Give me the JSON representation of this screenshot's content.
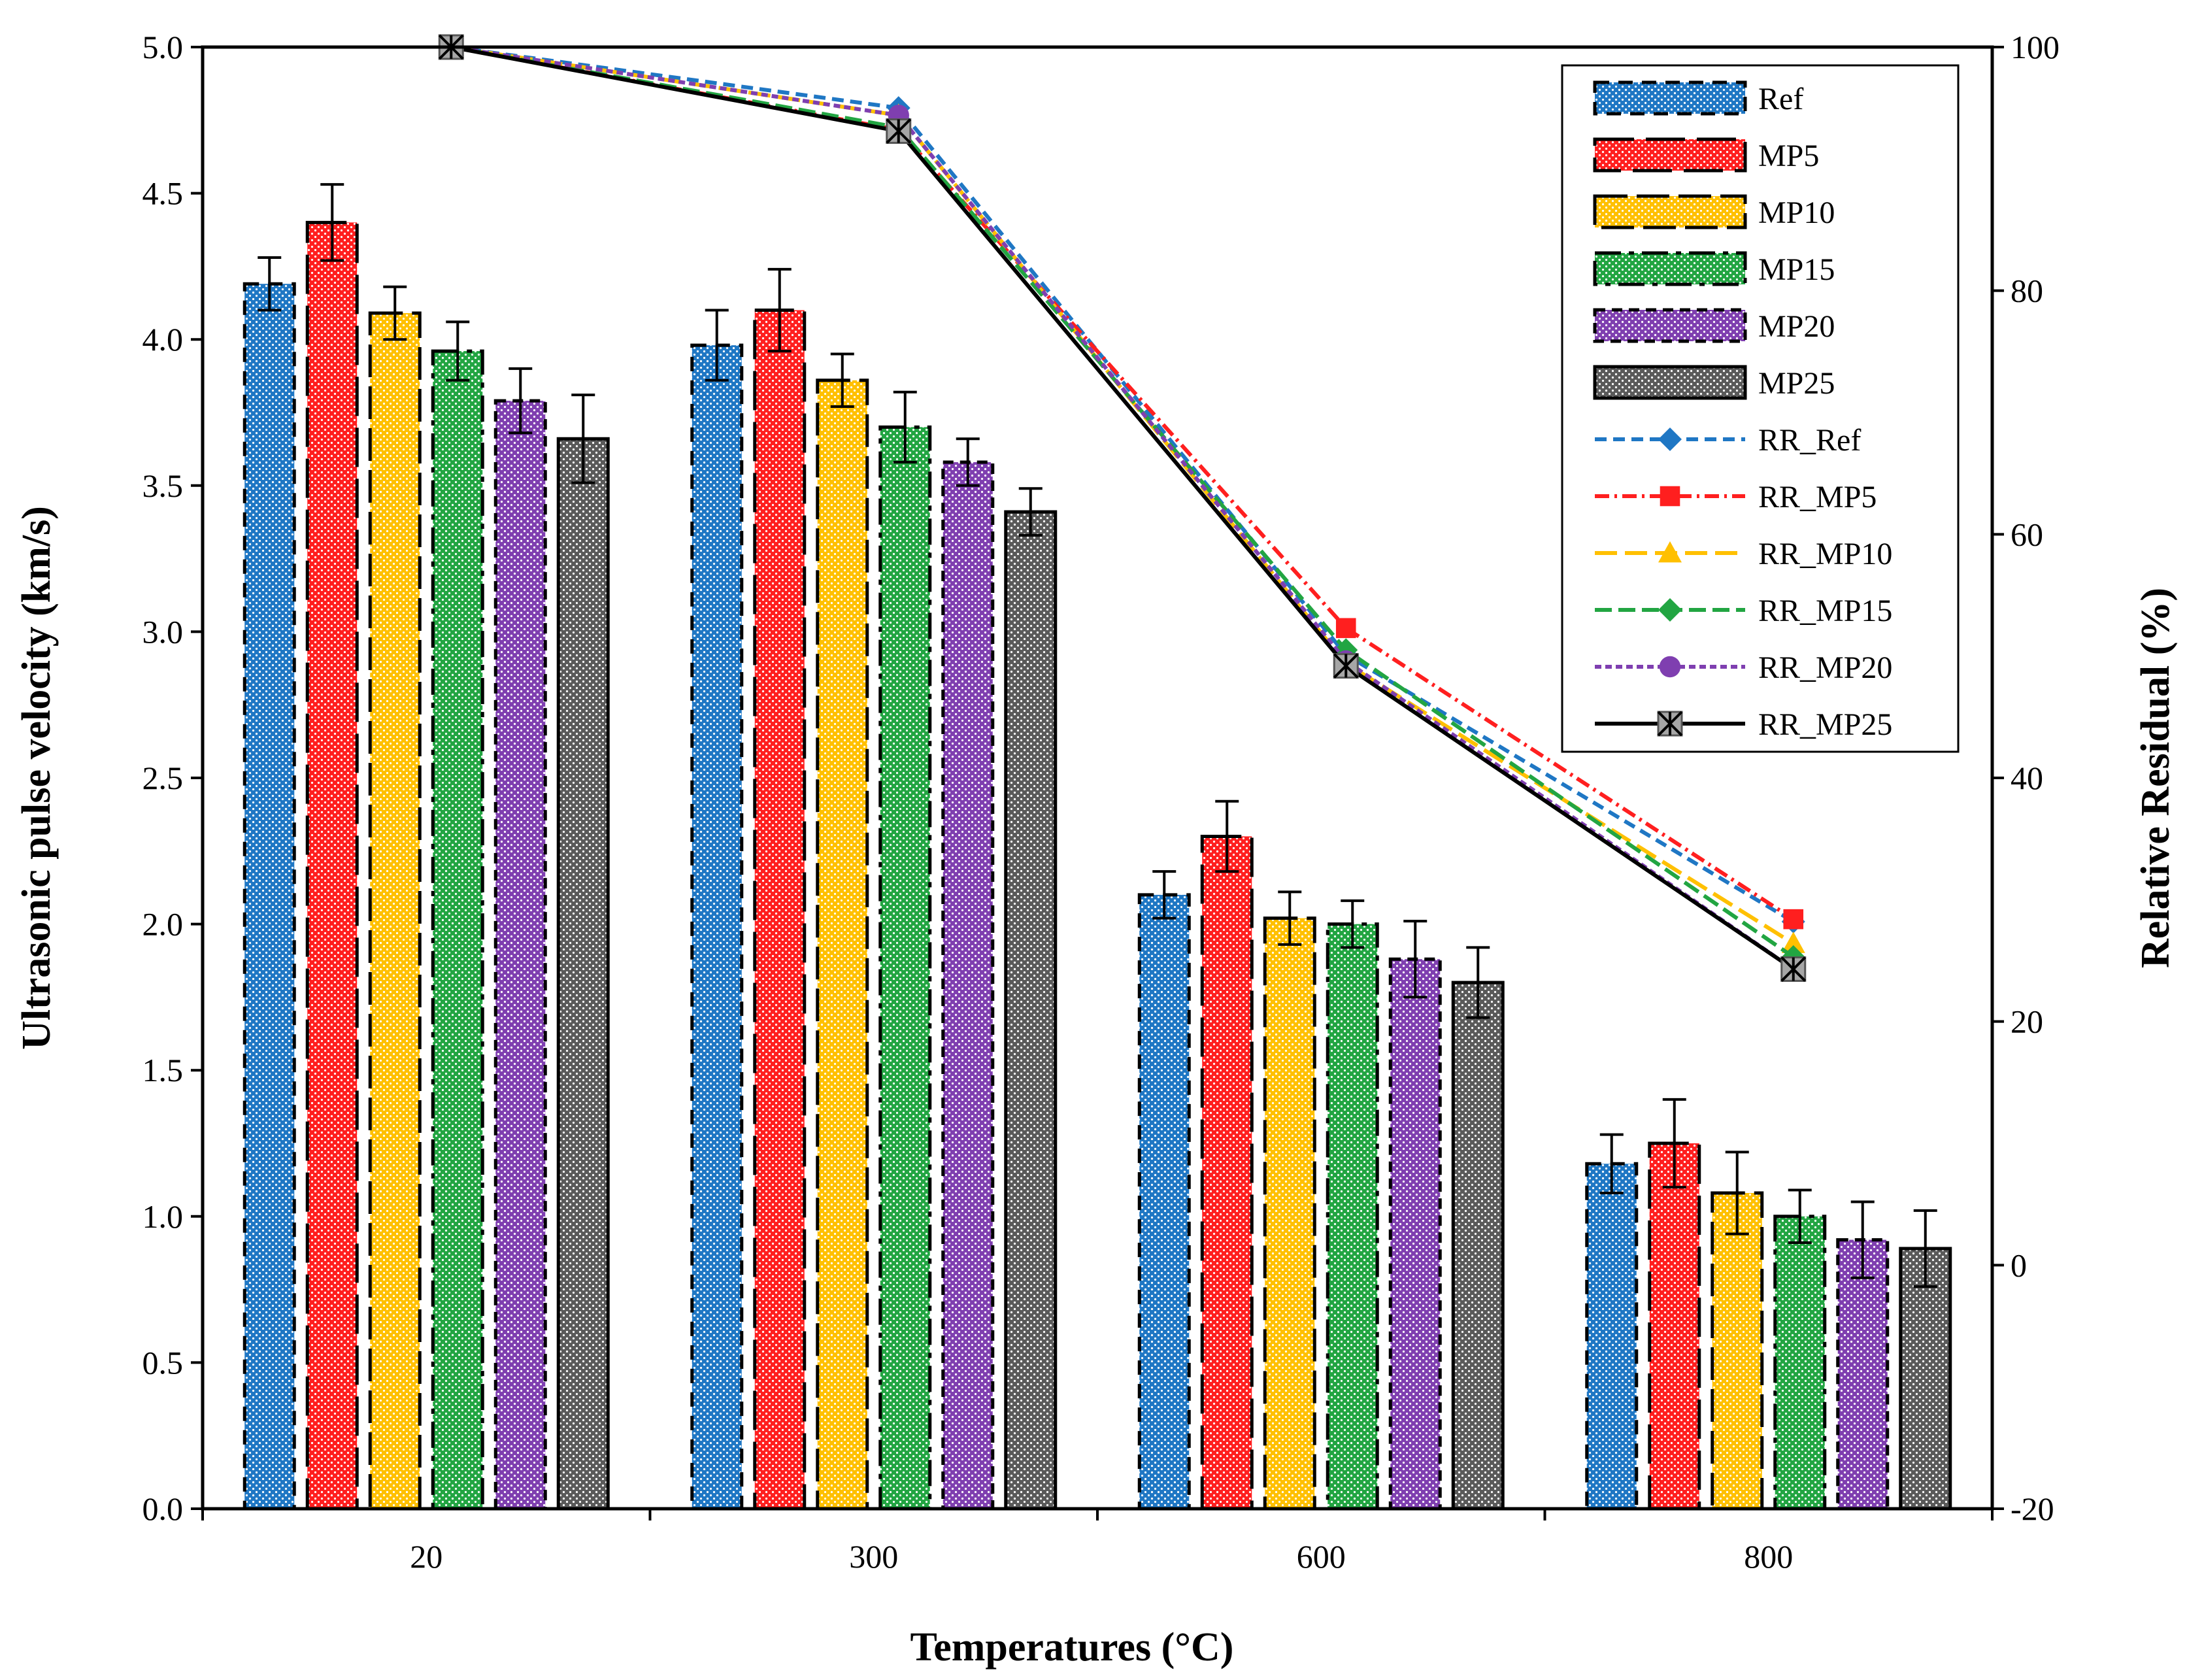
{
  "chart_data": {
    "type": "bar",
    "title": "",
    "xlabel": "Temperatures (°C)",
    "ylabel": "Ultrasonic pulse velocity (km/s)",
    "y2label": "Relative Residual (%)",
    "categories": [
      "20",
      "300",
      "600",
      "800"
    ],
    "ylim": [
      0.0,
      5.0
    ],
    "y2lim": [
      -20,
      100
    ],
    "yticks": [
      "0.0",
      "0.5",
      "1.0",
      "1.5",
      "2.0",
      "2.5",
      "3.0",
      "3.5",
      "4.0",
      "4.5",
      "5.0"
    ],
    "y2ticks": [
      "-20",
      "0",
      "20",
      "40",
      "60",
      "80",
      "100"
    ],
    "bar_series": [
      {
        "name": "Ref",
        "values": [
          4.19,
          3.98,
          2.1,
          1.18
        ],
        "errors": [
          0.09,
          0.12,
          0.08,
          0.1
        ],
        "color": "#1f77c4",
        "dots": "#ffffff"
      },
      {
        "name": "MP5",
        "values": [
          4.4,
          4.1,
          2.3,
          1.25
        ],
        "errors": [
          0.13,
          0.14,
          0.12,
          0.15
        ],
        "color": "#ff1f1f",
        "dots": "#ffffff"
      },
      {
        "name": "MP10",
        "values": [
          4.09,
          3.86,
          2.02,
          1.08
        ],
        "errors": [
          0.09,
          0.09,
          0.09,
          0.14
        ],
        "color": "#ffc000",
        "dots": "#ffffff"
      },
      {
        "name": "MP15",
        "values": [
          3.96,
          3.7,
          2.0,
          1.0
        ],
        "errors": [
          0.1,
          0.12,
          0.08,
          0.09
        ],
        "color": "#22a542",
        "dots": "#ffffff"
      },
      {
        "name": "MP20",
        "values": [
          3.79,
          3.58,
          1.88,
          0.92
        ],
        "errors": [
          0.11,
          0.08,
          0.13,
          0.13
        ],
        "color": "#7f3fb0",
        "dots": "#ffffff"
      },
      {
        "name": "MP25",
        "values": [
          3.66,
          3.41,
          1.8,
          0.89
        ],
        "errors": [
          0.15,
          0.08,
          0.12,
          0.13
        ],
        "color": "#5a5a5a",
        "dots": "#ffffff"
      }
    ],
    "line_series": [
      {
        "name": "RR_Ref",
        "values": [
          100,
          95.0,
          50.1,
          28.2
        ],
        "color": "#1f77c4",
        "marker": "diamond",
        "dash": "18,10"
      },
      {
        "name": "RR_MP5",
        "values": [
          100,
          93.2,
          52.3,
          28.4
        ],
        "color": "#ff1f1f",
        "marker": "square",
        "dash": "22,8,4,8"
      },
      {
        "name": "RR_MP10",
        "values": [
          100,
          94.4,
          49.4,
          26.4
        ],
        "color": "#ffc000",
        "marker": "triangle",
        "dash": "34,12"
      },
      {
        "name": "RR_MP15",
        "values": [
          100,
          93.4,
          50.5,
          25.3
        ],
        "color": "#22a542",
        "marker": "diamond",
        "dash": "26,10"
      },
      {
        "name": "RR_MP20",
        "values": [
          100,
          94.4,
          49.6,
          24.3
        ],
        "color": "#7f3fb0",
        "marker": "circle",
        "dash": "10,6"
      },
      {
        "name": "RR_MP25",
        "values": [
          100,
          93.1,
          49.2,
          24.3
        ],
        "color": "#000000",
        "marker": "star",
        "dash": ""
      }
    ],
    "legend_position": "top-right",
    "grid": false
  }
}
